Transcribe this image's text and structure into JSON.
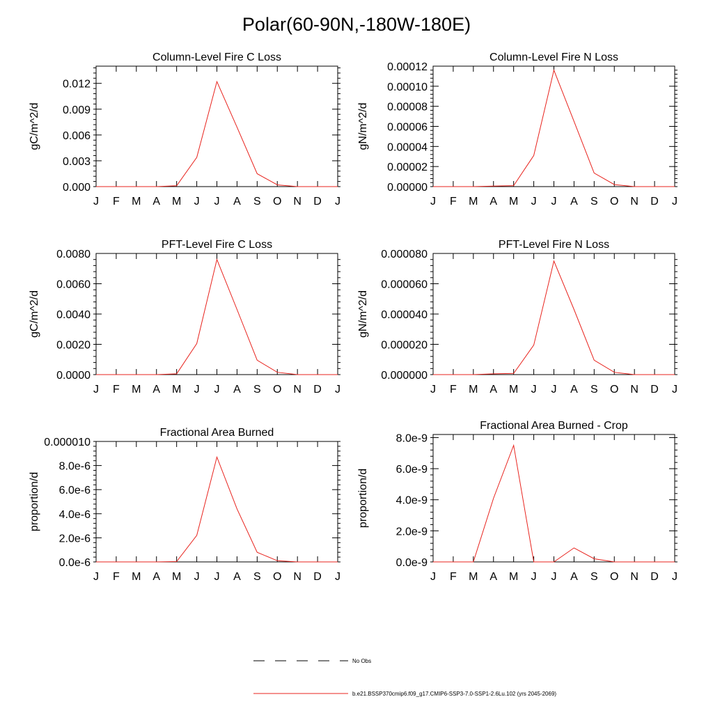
{
  "figure": {
    "title": "Polar(60-90N,-180W-180E)"
  },
  "legend": {
    "items": [
      {
        "label": "No Obs",
        "color": "#000000",
        "style": "dashed"
      },
      {
        "label": "b.e21.BSSP370cmip6.f09_g17.CMIP6-SSP3-7.0-SSP1-2.6Lu.102 (yrs 2045-2069)",
        "color": "#e8231d",
        "style": "solid"
      }
    ]
  },
  "chart_data": [
    {
      "type": "line",
      "title": "Column-Level Fire C Loss",
      "ylabel": "gC/m^2/d",
      "categories": [
        "J",
        "F",
        "M",
        "A",
        "M",
        "J",
        "J",
        "A",
        "S",
        "O",
        "N",
        "D",
        "J"
      ],
      "ylim": [
        0,
        0.014
      ],
      "yticks": [
        0,
        0.003,
        0.006,
        0.009,
        0.012
      ],
      "ytick_labels": [
        "0.000",
        "0.003",
        "0.006",
        "0.009",
        "0.012"
      ],
      "series": [
        {
          "color": "#e8231d",
          "values": [
            0,
            0,
            0,
            0,
            0.0001,
            0.0034,
            0.0122,
            0.0069,
            0.0015,
            0.0002,
            0,
            0,
            0
          ]
        }
      ]
    },
    {
      "type": "line",
      "title": "Column-Level Fire N Loss",
      "ylabel": "gN/m^2/d",
      "categories": [
        "J",
        "F",
        "M",
        "A",
        "M",
        "J",
        "J",
        "A",
        "S",
        "O",
        "N",
        "D",
        "J"
      ],
      "ylim": [
        0,
        0.00012
      ],
      "yticks": [
        0,
        2e-05,
        4e-05,
        6e-05,
        8e-05,
        0.0001,
        0.00012
      ],
      "ytick_labels": [
        "0.00000",
        "0.00002",
        "0.00004",
        "0.00006",
        "0.00008",
        "0.00010",
        "0.00012"
      ],
      "series": [
        {
          "color": "#e8231d",
          "values": [
            0,
            0,
            0,
            5e-07,
            1e-06,
            3.1e-05,
            0.000116,
            6.5e-05,
            1.35e-05,
            2e-06,
            0,
            0,
            0
          ]
        }
      ]
    },
    {
      "type": "line",
      "title": "PFT-Level Fire C Loss",
      "ylabel": "gC/m^2/d",
      "categories": [
        "J",
        "F",
        "M",
        "A",
        "M",
        "J",
        "J",
        "A",
        "S",
        "O",
        "N",
        "D",
        "J"
      ],
      "ylim": [
        0,
        0.008
      ],
      "yticks": [
        0,
        0.002,
        0.004,
        0.006,
        0.008
      ],
      "ytick_labels": [
        "0.0000",
        "0.0020",
        "0.0040",
        "0.0060",
        "0.0080"
      ],
      "series": [
        {
          "color": "#e8231d",
          "values": [
            0,
            0,
            0,
            0,
            5e-05,
            0.00205,
            0.0076,
            0.0043,
            0.00095,
            0.00015,
            0,
            0,
            0
          ]
        }
      ]
    },
    {
      "type": "line",
      "title": "PFT-Level Fire N Loss",
      "ylabel": "gN/m^2/d",
      "categories": [
        "J",
        "F",
        "M",
        "A",
        "M",
        "J",
        "J",
        "A",
        "S",
        "O",
        "N",
        "D",
        "J"
      ],
      "ylim": [
        0,
        8e-05
      ],
      "yticks": [
        0,
        2e-05,
        4e-05,
        6e-05,
        8e-05
      ],
      "ytick_labels": [
        "0.000000",
        "0.000020",
        "0.000040",
        "0.000060",
        "0.000080"
      ],
      "series": [
        {
          "color": "#e8231d",
          "values": [
            0,
            0,
            0,
            5e-07,
            8e-07,
            1.95e-05,
            7.5e-05,
            4.3e-05,
            9.5e-06,
            1.5e-06,
            0,
            0,
            0
          ]
        }
      ]
    },
    {
      "type": "line",
      "title": "Fractional Area Burned",
      "ylabel": "proportion/d",
      "categories": [
        "J",
        "F",
        "M",
        "A",
        "M",
        "J",
        "J",
        "A",
        "S",
        "O",
        "N",
        "D",
        "J"
      ],
      "ylim": [
        0,
        1e-05
      ],
      "yticks": [
        0,
        2e-06,
        4e-06,
        6e-06,
        8e-06,
        1e-05
      ],
      "ytick_labels": [
        "0.0e-6",
        "2.0e-6",
        "4.0e-6",
        "6.0e-6",
        "8.0e-6",
        "0.000010"
      ],
      "series": [
        {
          "color": "#e8231d",
          "values": [
            0,
            0,
            0,
            0,
            3e-08,
            2.2e-06,
            8.7e-06,
            4.4e-06,
            8e-07,
            1e-07,
            0,
            0,
            0
          ]
        }
      ]
    },
    {
      "type": "line",
      "title": "Fractional Area Burned - Crop",
      "ylabel": "proportion/d",
      "categories": [
        "J",
        "F",
        "M",
        "A",
        "M",
        "J",
        "J",
        "A",
        "S",
        "O",
        "N",
        "D",
        "J"
      ],
      "ylim": [
        0,
        8.2e-09
      ],
      "yticks": [
        0,
        2e-09,
        4e-09,
        6e-09,
        8e-09
      ],
      "ytick_labels": [
        "0.0e-9",
        "2.0e-9",
        "4.0e-9",
        "6.0e-9",
        "8.0e-9"
      ],
      "series": [
        {
          "color": "#e8231d",
          "values": [
            0,
            0,
            0,
            4.1e-09,
            7.5e-09,
            0,
            0,
            9e-10,
            2e-10,
            0,
            0,
            0,
            0
          ]
        }
      ]
    }
  ]
}
